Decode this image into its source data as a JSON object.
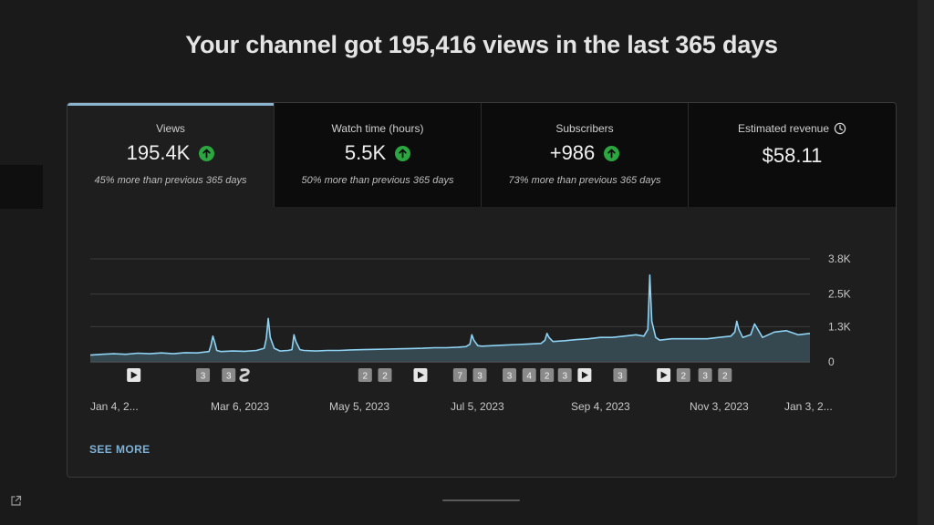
{
  "headline": "Your channel got 195,416 views in the last 365 days",
  "metrics": [
    {
      "label": "Views",
      "value": "195.4K",
      "compare": "45% more than previous 365 days",
      "trend": "up",
      "active": true
    },
    {
      "label": "Watch time (hours)",
      "value": "5.5K",
      "compare": "50% more than previous 365 days",
      "trend": "up",
      "active": false
    },
    {
      "label": "Subscribers",
      "value": "+986",
      "compare": "73% more than previous 365 days",
      "trend": "up",
      "active": false
    },
    {
      "label": "Estimated revenue",
      "value": "$58.11",
      "compare": "",
      "trend": "none",
      "active": false,
      "icon": "clock-icon"
    }
  ],
  "see_more": "SEE MORE",
  "colors": {
    "line": "#8fd3f4",
    "area": "#3a4f58",
    "up": "#2ba640",
    "accent": "#8ab4cf",
    "link": "#7fb2d8"
  },
  "chart_data": {
    "type": "area",
    "title": "",
    "ylabel": "",
    "xlabel": "",
    "x_tick_labels": [
      "Jan 4, 2...",
      "Mar 6, 2023",
      "May 5, 2023",
      "Jul 5, 2023",
      "Sep 4, 2023",
      "Nov 3, 2023",
      "Jan 3, 2..."
    ],
    "y_tick_labels": [
      "3.8K",
      "2.5K",
      "1.3K",
      "0"
    ],
    "y_ticks": [
      3800,
      2500,
      1300,
      0
    ],
    "ylim": [
      0,
      3800
    ],
    "grid": true,
    "series": [
      {
        "x": [
          0,
          6,
          12,
          18,
          24,
          30,
          36,
          42,
          48,
          54,
          60,
          61,
          62,
          63,
          64,
          66,
          72,
          78,
          84,
          88,
          89,
          90,
          91,
          93,
          96,
          100,
          102,
          103,
          104,
          106,
          108,
          114,
          120,
          126,
          132,
          138,
          144,
          150,
          156,
          162,
          168,
          174,
          180,
          186,
          190,
          192,
          193,
          194,
          196,
          198,
          204,
          210,
          216,
          222,
          228,
          230,
          231,
          232,
          234,
          240,
          246,
          252,
          258,
          264,
          270,
          276,
          280,
          282,
          283,
          284,
          286,
          288,
          294,
          300,
          306,
          312,
          318,
          324,
          326,
          327,
          328,
          330,
          334,
          336,
          340,
          346,
          352,
          358,
          364
        ],
        "values": [
          250,
          280,
          300,
          280,
          320,
          300,
          330,
          300,
          340,
          330,
          380,
          600,
          950,
          700,
          420,
          380,
          400,
          390,
          420,
          500,
          850,
          1600,
          900,
          500,
          400,
          420,
          450,
          1000,
          750,
          450,
          420,
          400,
          420,
          420,
          440,
          450,
          460,
          470,
          480,
          490,
          500,
          520,
          520,
          540,
          560,
          650,
          1000,
          800,
          600,
          580,
          600,
          620,
          640,
          660,
          680,
          800,
          1050,
          900,
          750,
          780,
          820,
          850,
          900,
          900,
          950,
          1000,
          950,
          1200,
          3200,
          1500,
          900,
          800,
          850,
          850,
          850,
          850,
          900,
          950,
          1100,
          1500,
          1200,
          900,
          1000,
          1400,
          900,
          1100,
          1150,
          1000,
          1050
        ]
      }
    ],
    "markers": [
      {
        "x": 22,
        "label": "",
        "icon": "play-icon"
      },
      {
        "x": 57,
        "label": "3",
        "icon": ""
      },
      {
        "x": 70,
        "label": "3",
        "icon": ""
      },
      {
        "x": 78,
        "label": "",
        "icon": "shorts-icon"
      },
      {
        "x": 139,
        "label": "2",
        "icon": ""
      },
      {
        "x": 149,
        "label": "2",
        "icon": ""
      },
      {
        "x": 167,
        "label": "",
        "icon": "play-icon"
      },
      {
        "x": 187,
        "label": "7",
        "icon": ""
      },
      {
        "x": 197,
        "label": "3",
        "icon": ""
      },
      {
        "x": 212,
        "label": "3",
        "icon": ""
      },
      {
        "x": 222,
        "label": "4",
        "icon": ""
      },
      {
        "x": 231,
        "label": "2",
        "icon": ""
      },
      {
        "x": 240,
        "label": "3",
        "icon": ""
      },
      {
        "x": 250,
        "label": "",
        "icon": "play-icon"
      },
      {
        "x": 268,
        "label": "3",
        "icon": ""
      },
      {
        "x": 290,
        "label": "",
        "icon": "play-icon"
      },
      {
        "x": 300,
        "label": "2",
        "icon": ""
      },
      {
        "x": 311,
        "label": "3",
        "icon": ""
      },
      {
        "x": 321,
        "label": "2",
        "icon": ""
      }
    ]
  }
}
